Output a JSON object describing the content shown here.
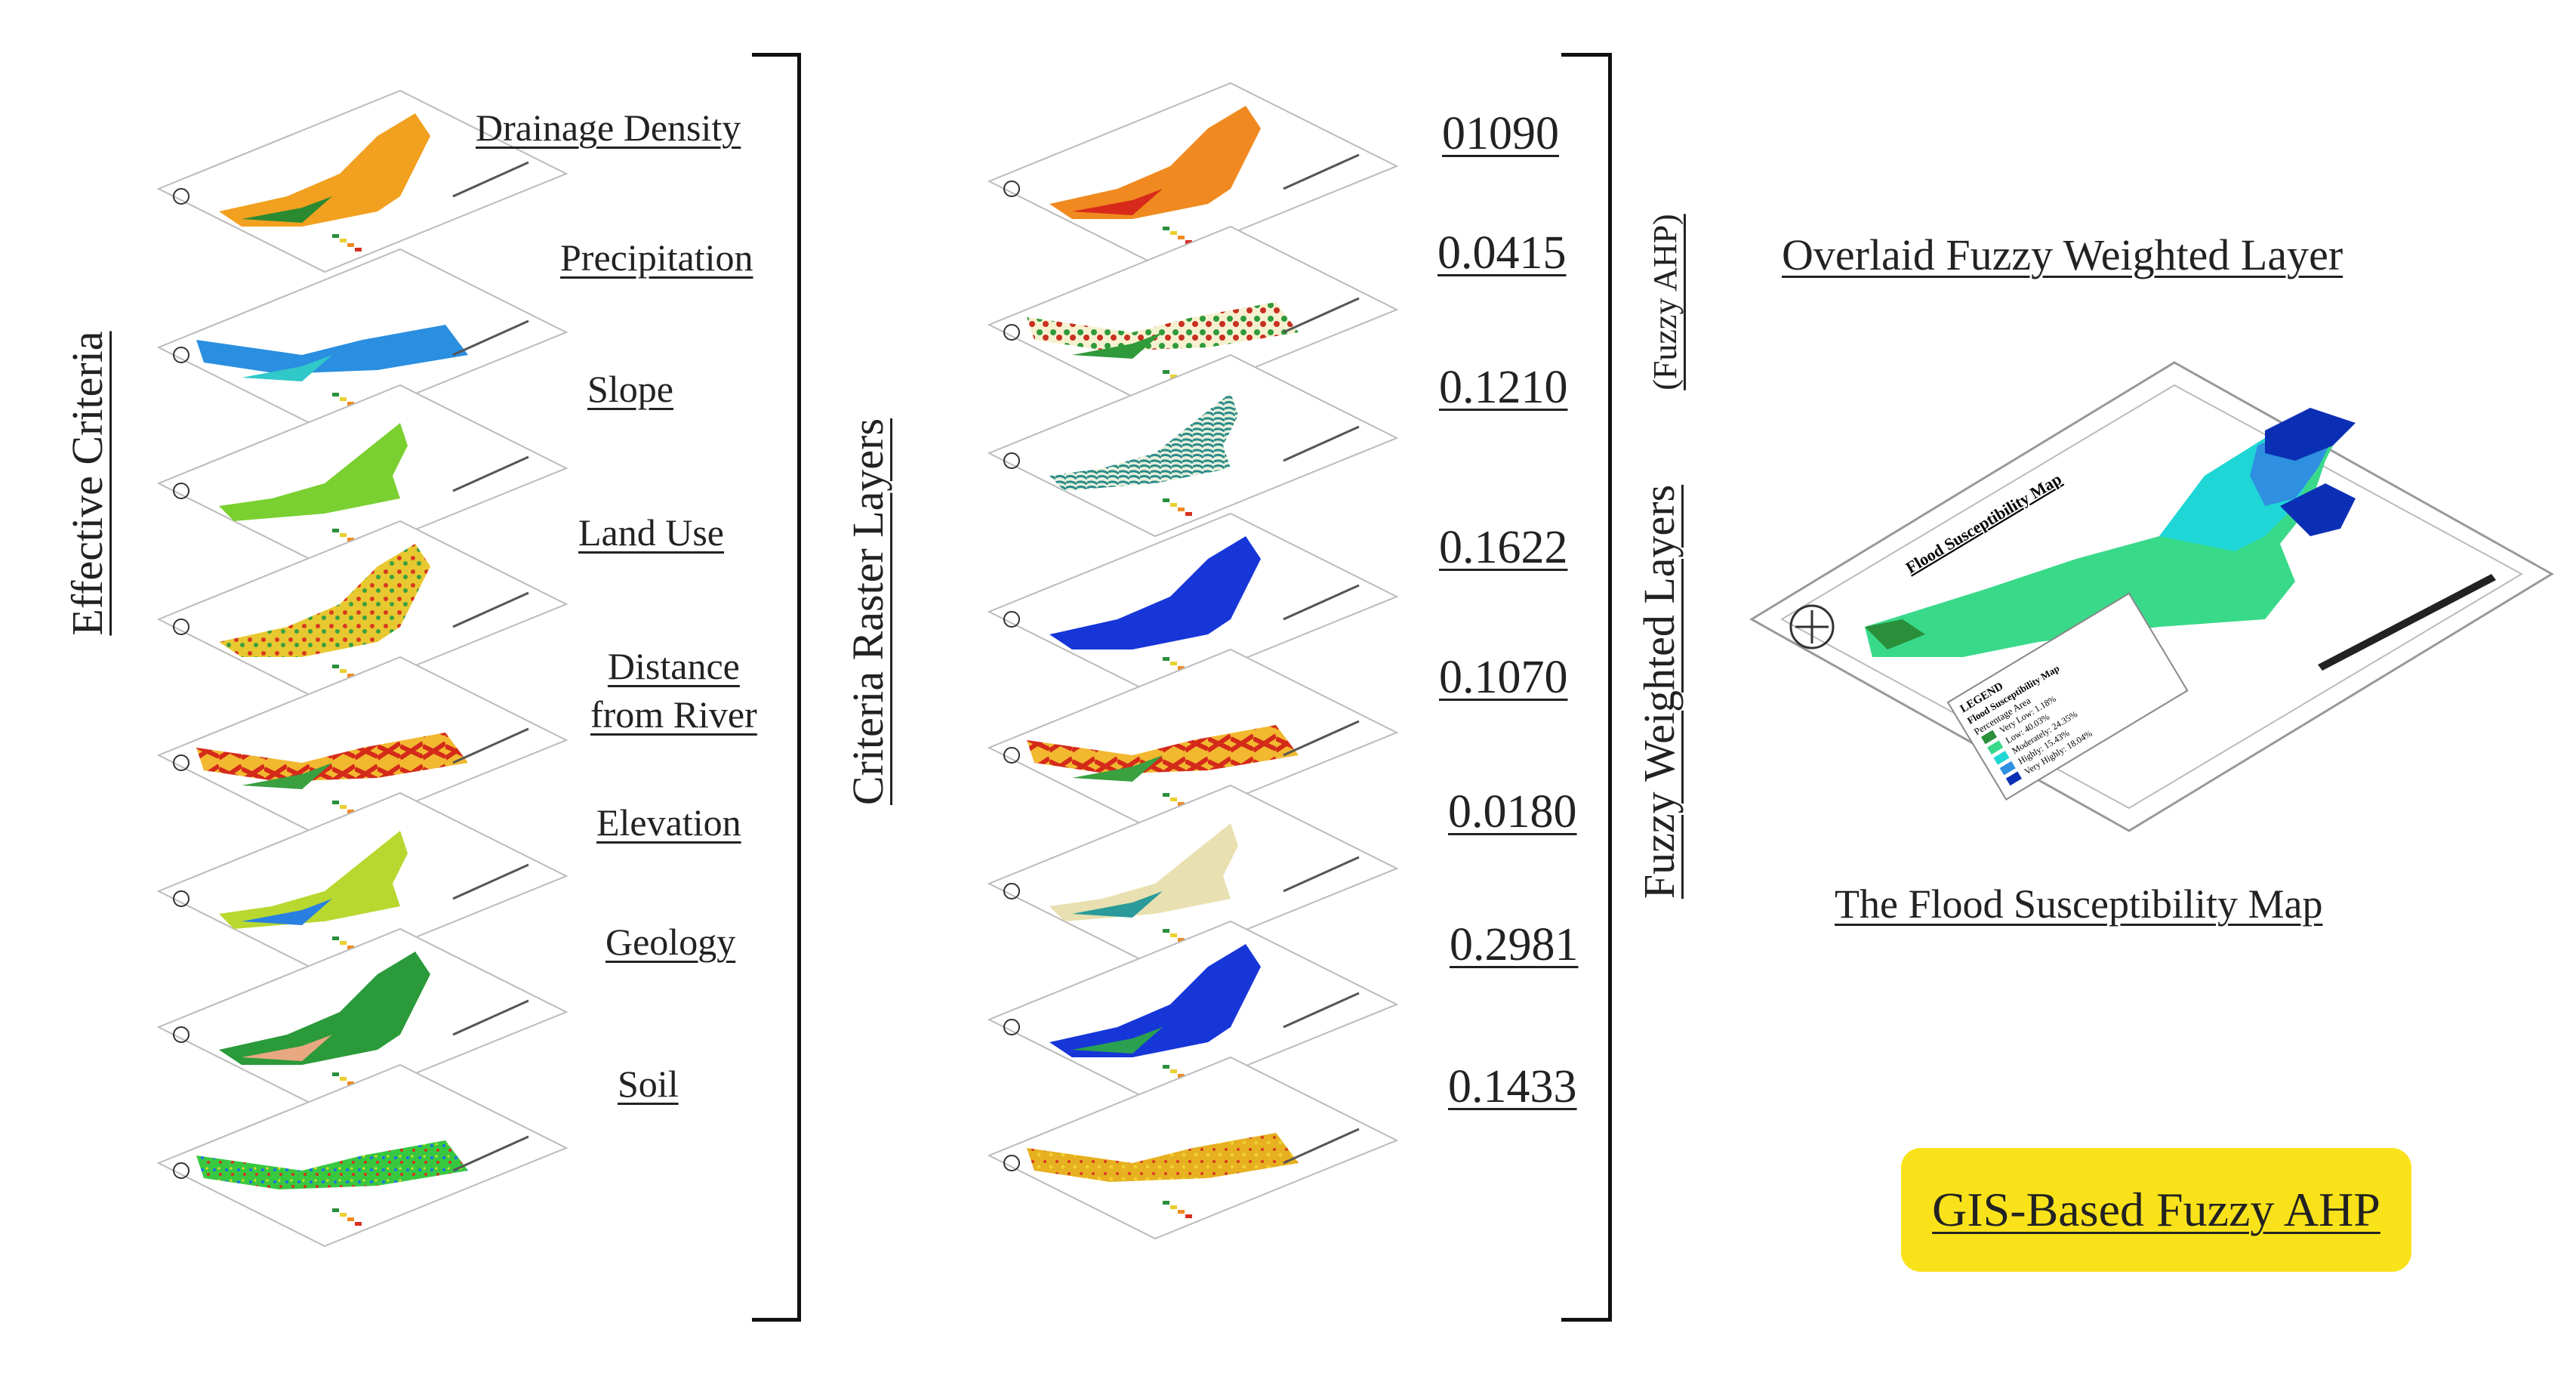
{
  "headers": {
    "effective_criteria": "Effective Criteria",
    "criteria_raster_layers": "Criteria Raster Layers",
    "fuzzy_weighted_layers": "Fuzzy Weighted Layers",
    "fuzzy_ahp": "(Fuzzy AHP)",
    "overlaid": "Overlaid Fuzzy Weighted Layer",
    "final_map": "The Flood Susceptibility Map",
    "method": "GIS-Based Fuzzy AHP"
  },
  "criteria": [
    {
      "label": "Drainage Density",
      "weight": "01090"
    },
    {
      "label": "Precipitation",
      "weight": "0.0415"
    },
    {
      "label": "Slope",
      "weight": "0.1210"
    },
    {
      "label": "Land Use",
      "weight": "0.1622"
    },
    {
      "label": "Distance from River",
      "label_line1": "Distance",
      "label_line2": "from River",
      "weight": "0.1070"
    },
    {
      "label": "Elevation",
      "weight": "0.0180"
    },
    {
      "label": "Geology",
      "weight": "0.2981"
    },
    {
      "label": "Soil",
      "weight": "0.1433"
    }
  ],
  "map": {
    "title": "Flood Susceptibility Map",
    "legend_title": "LEGEND",
    "legend_subtitle": "Flood Susceptibility Map",
    "legend_header": "Percentage Area",
    "classes": [
      {
        "name": "Very Low: 1.18%",
        "color": "#2a8f3a"
      },
      {
        "name": "Low: 40.03%",
        "color": "#39d98a"
      },
      {
        "name": "Moderately: 24.35%",
        "color": "#1fd6d6"
      },
      {
        "name": "Highly: 15.43%",
        "color": "#2f8fe0"
      },
      {
        "name": "Very Highly: 18.04%",
        "color": "#0b2fb4"
      }
    ]
  },
  "colors": {
    "highlight": "#f9e21a"
  }
}
